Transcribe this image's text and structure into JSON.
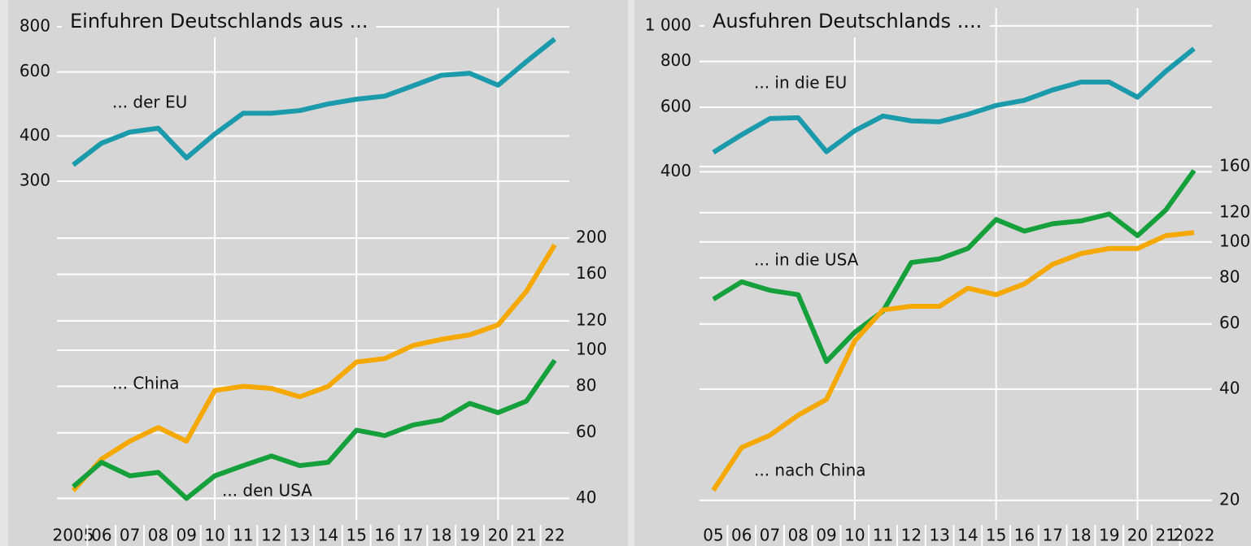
{
  "chart_data": [
    {
      "type": "line",
      "title": "Einfuhren Deutschlands aus ...",
      "log_scale": true,
      "grid": true,
      "categories": [
        "2005",
        "06",
        "07",
        "08",
        "09",
        "10",
        "11",
        "12",
        "13",
        "14",
        "15",
        "16",
        "17",
        "18",
        "19",
        "20",
        "21",
        "22"
      ],
      "ylim": [
        35,
        900
      ],
      "yticks": [
        300,
        400,
        600,
        800
      ],
      "y2lim": [
        35,
        830
      ],
      "y2ticks": [
        40,
        60,
        80,
        100,
        120,
        160,
        200
      ],
      "series": [
        {
          "name": "... der EU",
          "color": "#1a9aaa",
          "values": [
            333,
            382,
            410,
            420,
            348,
            405,
            462,
            462,
            470,
            490,
            505,
            515,
            550,
            588,
            595,
            552,
            641,
            740
          ]
        },
        {
          "name": "... China",
          "color": "#f5a800",
          "axis": "y2",
          "values": [
            42,
            51,
            57,
            62,
            57,
            78,
            80,
            79,
            75,
            80,
            93,
            95,
            103,
            107,
            110,
            117,
            144,
            192
          ]
        },
        {
          "name": "... den USA",
          "color": "#16a03c",
          "axis": "y2",
          "values": [
            43,
            50,
            46,
            47,
            40,
            46,
            49,
            52,
            49,
            50,
            61,
            59,
            63,
            65,
            72,
            68,
            73,
            94
          ]
        }
      ]
    },
    {
      "type": "line",
      "title": "Ausfuhren Deutschlands ....",
      "log_scale": true,
      "grid": true,
      "categories": [
        "05",
        "06",
        "07",
        "08",
        "09",
        "10",
        "11",
        "12",
        "13",
        "14",
        "15",
        "16",
        "17",
        "18",
        "19",
        "20",
        "21",
        "2022"
      ],
      "ylim": [
        45,
        1118
      ],
      "yticks": [
        400,
        600,
        800,
        {
          "value": 1000,
          "label": "1 000"
        }
      ],
      "y2lim": [
        17.7,
        429
      ],
      "y2ticks": [
        20,
        40,
        60,
        80,
        100,
        120,
        160
      ],
      "series": [
        {
          "name": "... in die EU",
          "color": "#1a9aaa",
          "values": [
            452,
            505,
            559,
            562,
            454,
            518,
            568,
            551,
            548,
            574,
            607,
            627,
            669,
            703,
            703,
            639,
            752,
            867
          ]
        },
        {
          "name": "... in die USA",
          "color": "#16a03c",
          "axis": "y2",
          "values": [
            70,
            78,
            74,
            72,
            47.5,
            57,
            65,
            88,
            90,
            96,
            115,
            107,
            112,
            114,
            119,
            104,
            122,
            156
          ]
        },
        {
          "name": "... nach China",
          "color": "#f5a800",
          "axis": "y2",
          "values": [
            21.3,
            27.8,
            30,
            34,
            37.5,
            54,
            65.5,
            67,
            67,
            75,
            72,
            77,
            87,
            93,
            96,
            96,
            104,
            106
          ]
        }
      ]
    }
  ]
}
